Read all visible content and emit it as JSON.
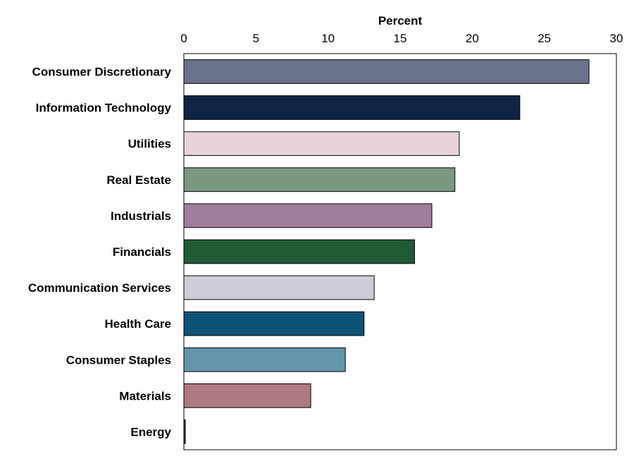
{
  "chart_data": {
    "type": "bar",
    "orientation": "horizontal",
    "title": "",
    "xlabel": "Percent",
    "ylabel": "",
    "xlim": [
      0,
      30
    ],
    "x_ticks": [
      "0",
      "5",
      "10",
      "15",
      "20",
      "25",
      "30"
    ],
    "x_axis_position": "top",
    "grid": false,
    "categories": [
      "Consumer Discretionary",
      "Information Technology",
      "Utilities",
      "Real Estate",
      "Industrials",
      "Financials",
      "Communication Services",
      "Health Care",
      "Consumer Staples",
      "Materials",
      "Energy"
    ],
    "values": [
      28.1,
      23.3,
      19.1,
      18.8,
      17.2,
      16.0,
      13.2,
      12.5,
      11.2,
      8.8,
      0.1
    ],
    "colors": [
      "#6b728c",
      "#0f2444",
      "#e8d3d8",
      "#7a987e",
      "#a07e9b",
      "#215b36",
      "#cccdd6",
      "#0e5276",
      "#6294ab",
      "#af7982",
      "#6b2b3c"
    ]
  }
}
